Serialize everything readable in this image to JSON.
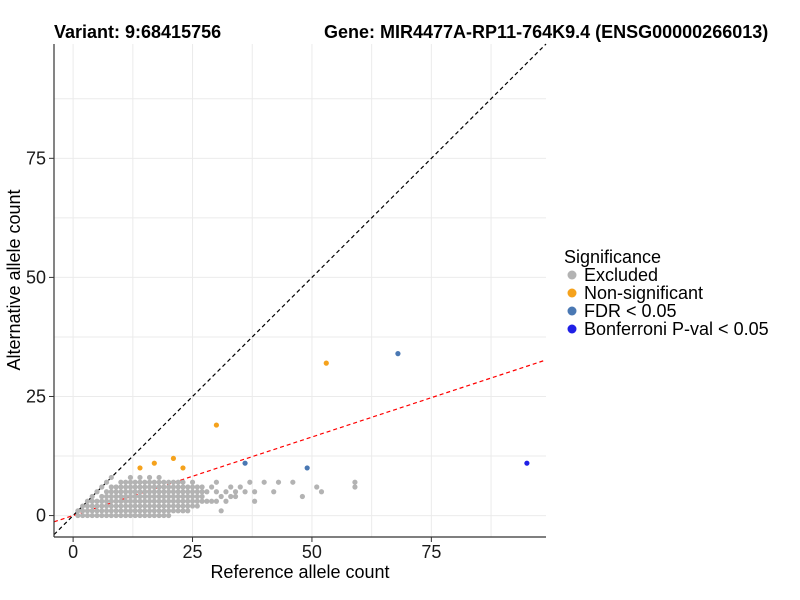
{
  "titles": {
    "variant": "Variant: 9:68415756",
    "gene": "Gene: MIR4477A-RP11-764K9.4 (ENSG00000266013)"
  },
  "chart_data": {
    "type": "scatter",
    "xlabel": "Reference allele count",
    "ylabel": "Alternative allele count",
    "xlim": [
      -4,
      99
    ],
    "ylim": [
      -4.5,
      99
    ],
    "xticks": [
      0,
      25,
      50,
      75
    ],
    "yticks": [
      0,
      25,
      50,
      75
    ],
    "grid": true,
    "reference_lines": [
      {
        "name": "identity",
        "color": "#000000",
        "dash": "dashed",
        "intercept": 0,
        "slope": 1
      },
      {
        "name": "fit",
        "color": "#ff0000",
        "dash": "dashed",
        "intercept": 0,
        "slope": 0.33
      }
    ],
    "legend": {
      "title": "Significance",
      "position": "right",
      "entries": [
        {
          "label": "Excluded",
          "color": "#b3b3b3"
        },
        {
          "label": "Non-significant",
          "color": "#f5a21c"
        },
        {
          "label": "FDR < 0.05",
          "color": "#4a78b3"
        },
        {
          "label": "Bonferroni P-val < 0.05",
          "color": "#1f1fe6"
        }
      ]
    },
    "series": [
      {
        "name": "Excluded",
        "color": "#b3b3b3",
        "points": [
          [
            1,
            0
          ],
          [
            1,
            1
          ],
          [
            2,
            0
          ],
          [
            2,
            1
          ],
          [
            2,
            2
          ],
          [
            3,
            0
          ],
          [
            3,
            1
          ],
          [
            3,
            2
          ],
          [
            3,
            3
          ],
          [
            4,
            0
          ],
          [
            4,
            1
          ],
          [
            4,
            2
          ],
          [
            4,
            3
          ],
          [
            4,
            4
          ],
          [
            5,
            0
          ],
          [
            5,
            1
          ],
          [
            5,
            2
          ],
          [
            5,
            3
          ],
          [
            5,
            5
          ],
          [
            6,
            0
          ],
          [
            6,
            1
          ],
          [
            6,
            2
          ],
          [
            6,
            3
          ],
          [
            6,
            4
          ],
          [
            6,
            6
          ],
          [
            7,
            0
          ],
          [
            7,
            1
          ],
          [
            7,
            2
          ],
          [
            7,
            3
          ],
          [
            7,
            4
          ],
          [
            7,
            5
          ],
          [
            7,
            7
          ],
          [
            8,
            0
          ],
          [
            8,
            1
          ],
          [
            8,
            2
          ],
          [
            8,
            3
          ],
          [
            8,
            4
          ],
          [
            8,
            5
          ],
          [
            8,
            6
          ],
          [
            8,
            8
          ],
          [
            9,
            0
          ],
          [
            9,
            1
          ],
          [
            9,
            2
          ],
          [
            9,
            3
          ],
          [
            9,
            4
          ],
          [
            9,
            5
          ],
          [
            9,
            6
          ],
          [
            10,
            0
          ],
          [
            10,
            1
          ],
          [
            10,
            2
          ],
          [
            10,
            3
          ],
          [
            10,
            4
          ],
          [
            10,
            5
          ],
          [
            10,
            6
          ],
          [
            10,
            7
          ],
          [
            11,
            0
          ],
          [
            11,
            1
          ],
          [
            11,
            2
          ],
          [
            11,
            3
          ],
          [
            11,
            4
          ],
          [
            11,
            5
          ],
          [
            11,
            6
          ],
          [
            11,
            7
          ],
          [
            12,
            0
          ],
          [
            12,
            1
          ],
          [
            12,
            2
          ],
          [
            12,
            3
          ],
          [
            12,
            4
          ],
          [
            12,
            5
          ],
          [
            12,
            6
          ],
          [
            12,
            7
          ],
          [
            12,
            8
          ],
          [
            13,
            0
          ],
          [
            13,
            1
          ],
          [
            13,
            2
          ],
          [
            13,
            3
          ],
          [
            13,
            4
          ],
          [
            13,
            5
          ],
          [
            13,
            6
          ],
          [
            13,
            7
          ],
          [
            14,
            0
          ],
          [
            14,
            1
          ],
          [
            14,
            2
          ],
          [
            14,
            3
          ],
          [
            14,
            4
          ],
          [
            14,
            5
          ],
          [
            14,
            6
          ],
          [
            14,
            7
          ],
          [
            14,
            8
          ],
          [
            15,
            0
          ],
          [
            15,
            1
          ],
          [
            15,
            2
          ],
          [
            15,
            3
          ],
          [
            15,
            4
          ],
          [
            15,
            5
          ],
          [
            15,
            6
          ],
          [
            15,
            7
          ],
          [
            16,
            0
          ],
          [
            16,
            1
          ],
          [
            16,
            2
          ],
          [
            16,
            3
          ],
          [
            16,
            4
          ],
          [
            16,
            5
          ],
          [
            16,
            6
          ],
          [
            16,
            7
          ],
          [
            16,
            8
          ],
          [
            17,
            0
          ],
          [
            17,
            1
          ],
          [
            17,
            2
          ],
          [
            17,
            3
          ],
          [
            17,
            4
          ],
          [
            17,
            5
          ],
          [
            17,
            6
          ],
          [
            17,
            7
          ],
          [
            18,
            0
          ],
          [
            18,
            1
          ],
          [
            18,
            2
          ],
          [
            18,
            3
          ],
          [
            18,
            4
          ],
          [
            18,
            5
          ],
          [
            18,
            6
          ],
          [
            18,
            7
          ],
          [
            18,
            8
          ],
          [
            19,
            0
          ],
          [
            19,
            1
          ],
          [
            19,
            2
          ],
          [
            19,
            3
          ],
          [
            19,
            4
          ],
          [
            19,
            5
          ],
          [
            19,
            6
          ],
          [
            19,
            7
          ],
          [
            20,
            0
          ],
          [
            20,
            1
          ],
          [
            20,
            2
          ],
          [
            20,
            3
          ],
          [
            20,
            4
          ],
          [
            20,
            5
          ],
          [
            20,
            6
          ],
          [
            20,
            7
          ],
          [
            21,
            1
          ],
          [
            21,
            2
          ],
          [
            21,
            3
          ],
          [
            21,
            4
          ],
          [
            21,
            5
          ],
          [
            21,
            6
          ],
          [
            21,
            7
          ],
          [
            22,
            1
          ],
          [
            22,
            2
          ],
          [
            22,
            3
          ],
          [
            22,
            4
          ],
          [
            22,
            5
          ],
          [
            22,
            6
          ],
          [
            22,
            7
          ],
          [
            23,
            1
          ],
          [
            23,
            2
          ],
          [
            23,
            3
          ],
          [
            23,
            4
          ],
          [
            23,
            5
          ],
          [
            23,
            6
          ],
          [
            23,
            7
          ],
          [
            24,
            1
          ],
          [
            24,
            2
          ],
          [
            24,
            3
          ],
          [
            24,
            4
          ],
          [
            24,
            5
          ],
          [
            24,
            6
          ],
          [
            25,
            2
          ],
          [
            25,
            3
          ],
          [
            25,
            4
          ],
          [
            25,
            5
          ],
          [
            25,
            6
          ],
          [
            25,
            7
          ],
          [
            26,
            2
          ],
          [
            26,
            3
          ],
          [
            26,
            4
          ],
          [
            26,
            5
          ],
          [
            26,
            6
          ],
          [
            27,
            3
          ],
          [
            27,
            4
          ],
          [
            27,
            5
          ],
          [
            27,
            6
          ],
          [
            28,
            3
          ],
          [
            28,
            5
          ],
          [
            29,
            3
          ],
          [
            29,
            6
          ],
          [
            30,
            3
          ],
          [
            30,
            5
          ],
          [
            30,
            7
          ],
          [
            31,
            1
          ],
          [
            31,
            4
          ],
          [
            32,
            3
          ],
          [
            32,
            5
          ],
          [
            33,
            4
          ],
          [
            33,
            6
          ],
          [
            34,
            4
          ],
          [
            34,
            5
          ],
          [
            35,
            6
          ],
          [
            36,
            5
          ],
          [
            37,
            7
          ],
          [
            38,
            3
          ],
          [
            38,
            5
          ],
          [
            40,
            7
          ],
          [
            42,
            5
          ],
          [
            43,
            7
          ],
          [
            46,
            7
          ],
          [
            48,
            4
          ],
          [
            51,
            6
          ],
          [
            52,
            5
          ],
          [
            59,
            6
          ],
          [
            59,
            7
          ]
        ]
      },
      {
        "name": "Non-significant",
        "color": "#f5a21c",
        "points": [
          [
            14,
            10
          ],
          [
            17,
            11
          ],
          [
            21,
            12
          ],
          [
            23,
            10
          ],
          [
            30,
            19
          ],
          [
            53,
            32
          ]
        ]
      },
      {
        "name": "FDR < 0.05",
        "color": "#4a78b3",
        "points": [
          [
            36,
            11
          ],
          [
            49,
            10
          ],
          [
            68,
            34
          ]
        ]
      },
      {
        "name": "Bonferroni P-val < 0.05",
        "color": "#1f1fe6",
        "points": [
          [
            95,
            11
          ]
        ]
      }
    ]
  }
}
